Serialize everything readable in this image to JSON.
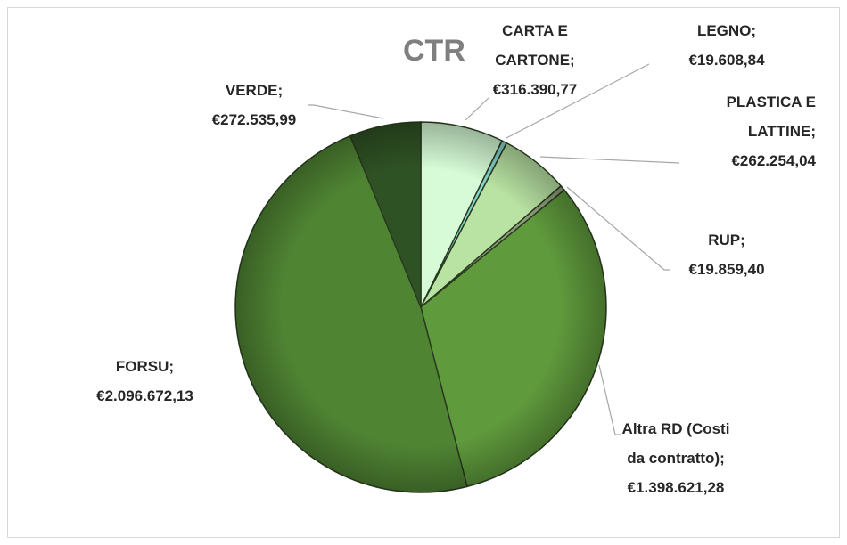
{
  "chart_data": {
    "type": "pie",
    "title": "CTR",
    "categories": [
      "CARTA E CARTONE",
      "LEGNO",
      "PLASTICA E LATTINE",
      "RUP",
      "Altra RD (Costi da contratto)",
      "FORSU",
      "VERDE"
    ],
    "values": [
      316390.77,
      19608.84,
      262254.04,
      19859.4,
      1398621.28,
      2096672.13,
      272535.99
    ],
    "value_labels": [
      "€316.390,77",
      "€19.608,84",
      "€262.254,04",
      "€19.859,40",
      "€1.398.621,28",
      "€2.096.672,13",
      "€272.535,99"
    ],
    "label_separator": ";",
    "colors": [
      "#d6fbd6",
      "#86d6cf",
      "#b9e3a3",
      "#8f9e7c",
      "#5f9a3c",
      "#4f8433",
      "#2f5224"
    ]
  }
}
